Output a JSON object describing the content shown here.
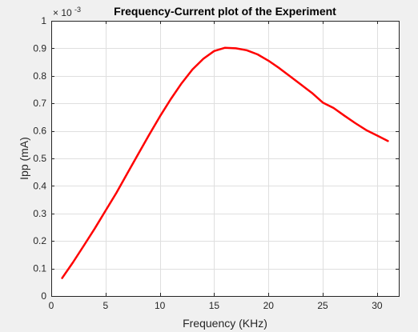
{
  "chart_data": {
    "type": "line",
    "title": "Frequency-Current plot of the Experiment",
    "xlabel": "Frequency (KHz)",
    "ylabel": "Ipp (mA)",
    "xlim": [
      0,
      32
    ],
    "ylim": [
      0,
      0.001
    ],
    "grid": true,
    "legend": "none",
    "y_exponent_base": "× 10",
    "y_exponent_power": "-3",
    "x_ticks": [
      0,
      5,
      10,
      15,
      20,
      25,
      30
    ],
    "x_tick_labels": [
      "0",
      "5",
      "10",
      "15",
      "20",
      "25",
      "30"
    ],
    "y_ticks": [
      0,
      0.0001,
      0.0002,
      0.0003,
      0.0004,
      0.0005,
      0.0006,
      0.0007,
      0.0008,
      0.0009,
      0.001
    ],
    "y_tick_labels": [
      "0",
      "0.1",
      "0.2",
      "0.3",
      "0.4",
      "0.5",
      "0.6",
      "0.7",
      "0.8",
      "0.9",
      "1"
    ],
    "series": [
      {
        "color": "#ff0000",
        "x": [
          1,
          2,
          3,
          4,
          5,
          6,
          7,
          8,
          9,
          10,
          11,
          12,
          13,
          14,
          15,
          16,
          17,
          18,
          19,
          20,
          21,
          22,
          23,
          24,
          25,
          26,
          27,
          28,
          29,
          30,
          31
        ],
        "y": [
          6.5e-05,
          0.000122,
          0.000183,
          0.000245,
          0.00031,
          0.000375,
          0.000445,
          0.000515,
          0.000585,
          0.000652,
          0.000715,
          0.000773,
          0.000823,
          0.000862,
          0.00089,
          0.000902,
          0.0009,
          0.000893,
          0.000878,
          0.000855,
          0.000828,
          0.000798,
          0.000768,
          0.000738,
          0.000703,
          0.000683,
          0.000655,
          0.000628,
          0.000603,
          0.000583,
          0.000563
        ]
      }
    ]
  }
}
